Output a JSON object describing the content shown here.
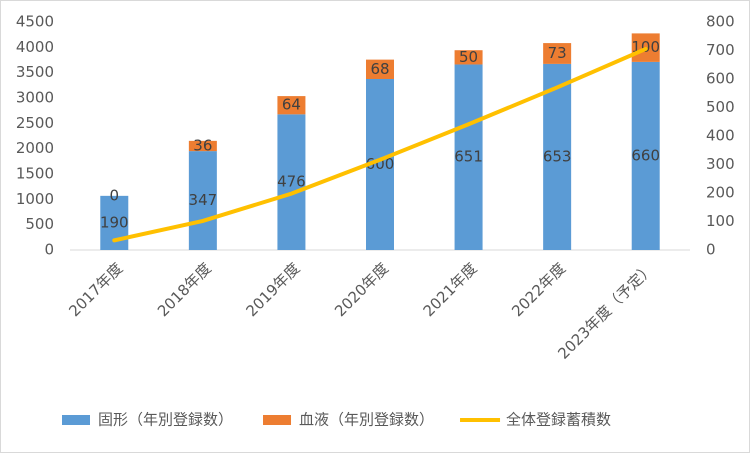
{
  "chart_data": {
    "type": "bar-line",
    "categories": [
      "2017年度",
      "2018年度",
      "2019年度",
      "2020年度",
      "2021年度",
      "2022年度",
      "2023年度（予定）"
    ],
    "series": [
      {
        "name": "固形（年別登録数）",
        "color": "#5b9bd5",
        "type": "bar",
        "axis": "y2",
        "values": [
          190,
          347,
          476,
          600,
          651,
          653,
          660
        ]
      },
      {
        "name": "血液（年別登録数）",
        "color": "#ed7d31",
        "type": "bar",
        "axis": "y2",
        "values": [
          0,
          36,
          64,
          68,
          50,
          73,
          100
        ]
      },
      {
        "name": "全体登録蓄積数",
        "color": "#ffc000",
        "type": "line",
        "values": [
          190,
          573,
          1113,
          1781,
          2482,
          3208,
          3968
        ]
      }
    ],
    "ylim": [
      0,
      4500
    ],
    "yticks": [
      0,
      500,
      1000,
      1500,
      2000,
      2500,
      3000,
      3500,
      4000,
      4500
    ],
    "y2lim": [
      0,
      800
    ],
    "y2ticks": [
      0,
      100,
      200,
      300,
      400,
      500,
      600,
      700,
      800
    ]
  }
}
